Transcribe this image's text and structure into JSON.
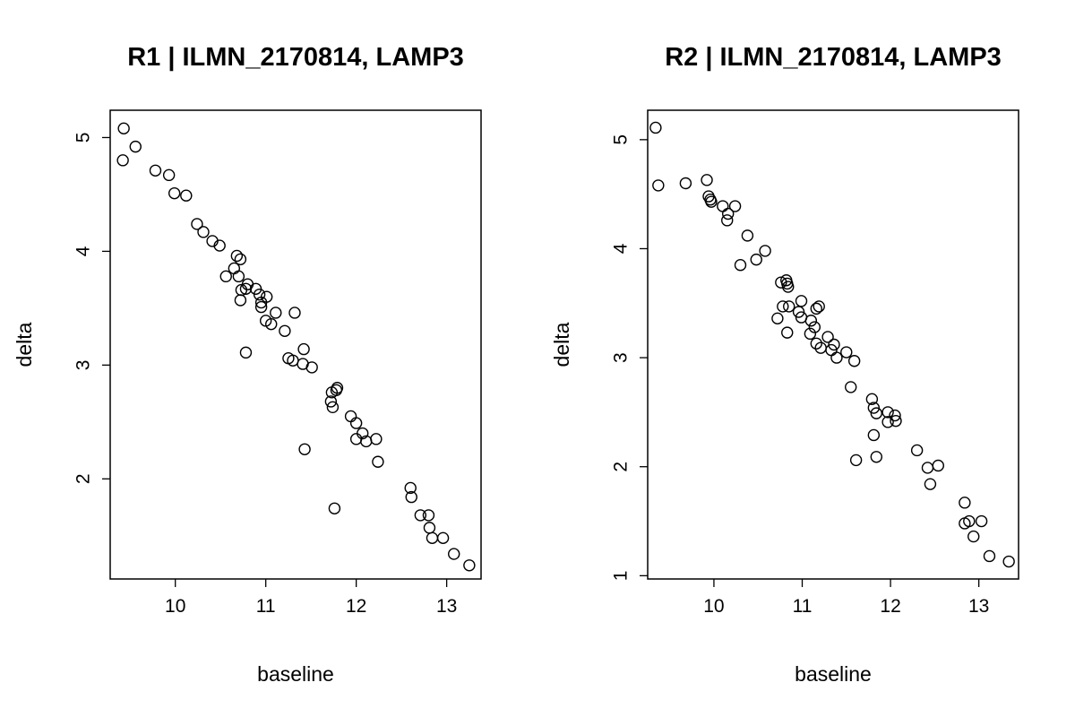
{
  "chart_data": [
    {
      "type": "scatter",
      "title": "R1 | ILMN_2170814, LAMP3",
      "xlabel": "baseline",
      "ylabel": "delta",
      "xlim": [
        9.28,
        13.38
      ],
      "ylim": [
        1.12,
        5.24
      ],
      "xticks": [
        10,
        11,
        12,
        13
      ],
      "yticks": [
        2,
        3,
        4,
        5
      ],
      "grid": false,
      "points": [
        [
          9.43,
          5.08
        ],
        [
          9.42,
          4.8
        ],
        [
          9.56,
          4.92
        ],
        [
          9.78,
          4.71
        ],
        [
          9.93,
          4.67
        ],
        [
          9.99,
          4.51
        ],
        [
          10.12,
          4.49
        ],
        [
          10.24,
          4.24
        ],
        [
          10.31,
          4.17
        ],
        [
          10.41,
          4.09
        ],
        [
          10.49,
          4.05
        ],
        [
          10.68,
          3.96
        ],
        [
          10.72,
          3.93
        ],
        [
          10.65,
          3.85
        ],
        [
          10.56,
          3.78
        ],
        [
          10.7,
          3.78
        ],
        [
          10.8,
          3.71
        ],
        [
          10.73,
          3.66
        ],
        [
          10.78,
          3.67
        ],
        [
          10.89,
          3.67
        ],
        [
          10.93,
          3.62
        ],
        [
          10.72,
          3.57
        ],
        [
          11.01,
          3.6
        ],
        [
          10.95,
          3.55
        ],
        [
          10.95,
          3.51
        ],
        [
          11.11,
          3.46
        ],
        [
          11.32,
          3.46
        ],
        [
          11.0,
          3.39
        ],
        [
          11.06,
          3.36
        ],
        [
          11.21,
          3.3
        ],
        [
          11.42,
          3.14
        ],
        [
          10.78,
          3.11
        ],
        [
          11.25,
          3.06
        ],
        [
          11.3,
          3.04
        ],
        [
          11.41,
          3.01
        ],
        [
          11.51,
          2.98
        ],
        [
          11.79,
          2.8
        ],
        [
          11.78,
          2.78
        ],
        [
          11.73,
          2.76
        ],
        [
          11.72,
          2.68
        ],
        [
          11.74,
          2.63
        ],
        [
          11.94,
          2.55
        ],
        [
          12.0,
          2.49
        ],
        [
          12.07,
          2.4
        ],
        [
          12.0,
          2.35
        ],
        [
          12.11,
          2.33
        ],
        [
          12.22,
          2.35
        ],
        [
          11.43,
          2.26
        ],
        [
          12.24,
          2.15
        ],
        [
          12.6,
          1.92
        ],
        [
          12.61,
          1.84
        ],
        [
          11.76,
          1.74
        ],
        [
          12.71,
          1.68
        ],
        [
          12.8,
          1.68
        ],
        [
          12.81,
          1.57
        ],
        [
          12.84,
          1.48
        ],
        [
          12.96,
          1.48
        ],
        [
          13.08,
          1.34
        ],
        [
          13.25,
          1.24
        ]
      ]
    },
    {
      "type": "scatter",
      "title": "R2 | ILMN_2170814, LAMP3",
      "xlabel": "baseline",
      "ylabel": "delta",
      "xlim": [
        9.25,
        13.45
      ],
      "ylim": [
        0.97,
        5.27
      ],
      "xticks": [
        10,
        11,
        12,
        13
      ],
      "yticks": [
        1,
        2,
        3,
        4,
        5
      ],
      "grid": false,
      "points": [
        [
          9.34,
          5.11
        ],
        [
          9.37,
          4.58
        ],
        [
          9.68,
          4.6
        ],
        [
          9.92,
          4.63
        ],
        [
          9.94,
          4.48
        ],
        [
          9.96,
          4.45
        ],
        [
          9.97,
          4.43
        ],
        [
          10.1,
          4.39
        ],
        [
          10.24,
          4.39
        ],
        [
          10.16,
          4.32
        ],
        [
          10.15,
          4.26
        ],
        [
          10.38,
          4.12
        ],
        [
          10.58,
          3.98
        ],
        [
          10.48,
          3.9
        ],
        [
          10.3,
          3.85
        ],
        [
          10.76,
          3.69
        ],
        [
          10.82,
          3.71
        ],
        [
          10.83,
          3.68
        ],
        [
          10.84,
          3.65
        ],
        [
          10.99,
          3.52
        ],
        [
          10.78,
          3.47
        ],
        [
          10.85,
          3.47
        ],
        [
          11.16,
          3.45
        ],
        [
          11.19,
          3.47
        ],
        [
          10.96,
          3.42
        ],
        [
          10.99,
          3.37
        ],
        [
          10.72,
          3.36
        ],
        [
          11.1,
          3.34
        ],
        [
          11.14,
          3.28
        ],
        [
          11.09,
          3.22
        ],
        [
          10.83,
          3.23
        ],
        [
          11.29,
          3.19
        ],
        [
          11.16,
          3.13
        ],
        [
          11.36,
          3.12
        ],
        [
          11.21,
          3.09
        ],
        [
          11.33,
          3.07
        ],
        [
          11.5,
          3.05
        ],
        [
          11.39,
          3.0
        ],
        [
          11.59,
          2.97
        ],
        [
          11.55,
          2.73
        ],
        [
          11.79,
          2.62
        ],
        [
          11.81,
          2.54
        ],
        [
          11.84,
          2.49
        ],
        [
          11.97,
          2.5
        ],
        [
          12.05,
          2.47
        ],
        [
          12.06,
          2.42
        ],
        [
          11.97,
          2.41
        ],
        [
          11.81,
          2.29
        ],
        [
          12.3,
          2.15
        ],
        [
          11.84,
          2.09
        ],
        [
          11.61,
          2.06
        ],
        [
          12.54,
          2.01
        ],
        [
          12.42,
          1.99
        ],
        [
          12.45,
          1.84
        ],
        [
          12.84,
          1.67
        ],
        [
          12.84,
          1.48
        ],
        [
          12.89,
          1.5
        ],
        [
          13.03,
          1.5
        ],
        [
          12.94,
          1.36
        ],
        [
          13.12,
          1.18
        ],
        [
          13.34,
          1.13
        ]
      ]
    }
  ]
}
